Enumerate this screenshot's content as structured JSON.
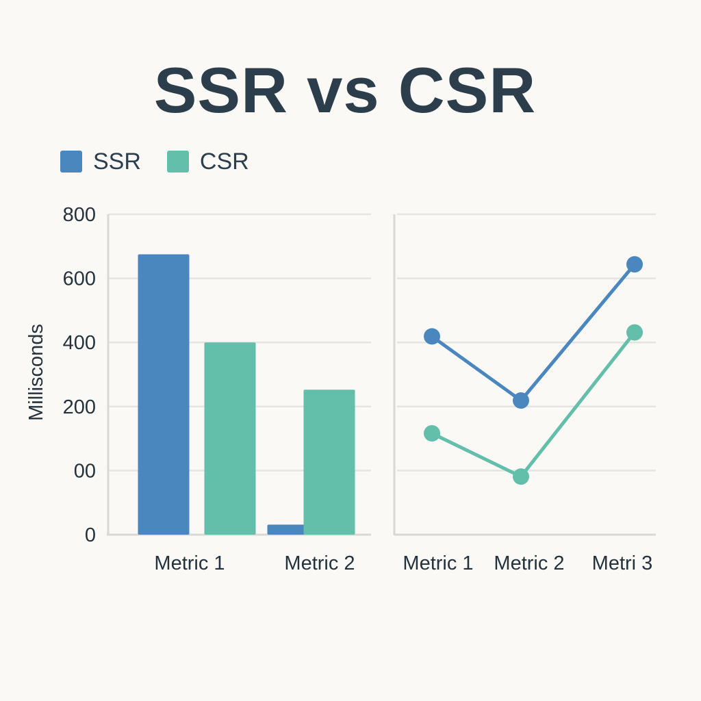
{
  "colors": {
    "ssr": "#4a87be",
    "csr": "#63bfa9",
    "grid": "#e4e4e2",
    "axis": "#d8d8d6"
  },
  "chart_data": [
    {
      "type": "bar",
      "title": "SSR vs CSR",
      "ylabel": "Millisconds",
      "ylim": [
        0,
        800
      ],
      "y_tick_labels": [
        "0",
        "00",
        "200",
        "400",
        "600",
        "800"
      ],
      "categories": [
        "Metric 1",
        "Metric 2"
      ],
      "series": [
        {
          "name": "SSR",
          "values": [
            700,
            25
          ]
        },
        {
          "name": "CSR",
          "values": [
            480,
            362
          ]
        }
      ],
      "grid": true,
      "legend": "top-left"
    },
    {
      "type": "line",
      "ylim": [
        0,
        800
      ],
      "categories": [
        "Metric 1",
        "Metric 2",
        "Metri 3"
      ],
      "series": [
        {
          "name": "SSR",
          "values": [
            495,
            335,
            675
          ]
        },
        {
          "name": "CSR",
          "values": [
            253,
            145,
            505
          ]
        }
      ],
      "grid": true
    }
  ]
}
